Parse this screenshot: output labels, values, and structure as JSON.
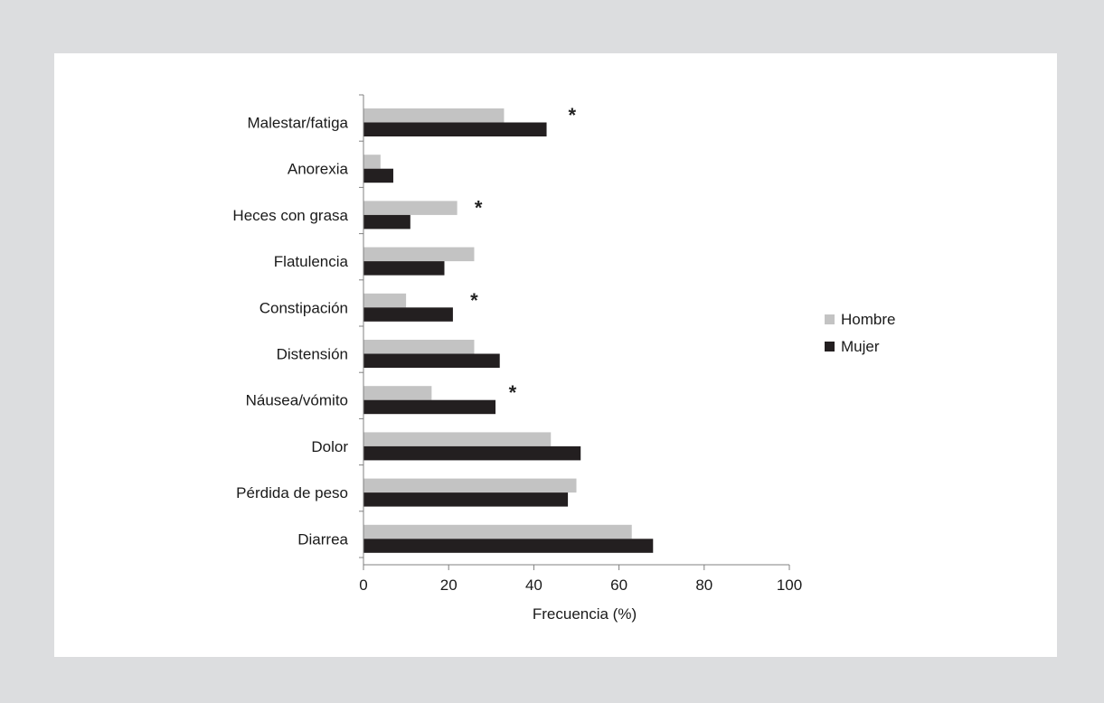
{
  "chart_data": {
    "type": "bar",
    "orientation": "horizontal",
    "categories": [
      "Malestar/fatiga",
      "Anorexia",
      "Heces con grasa",
      "Flatulencia",
      "Constipación",
      "Distensión",
      "Náusea/vómito",
      "Dolor",
      "Pérdida de peso",
      "Diarrea"
    ],
    "series": [
      {
        "name": "Hombre",
        "color": "#c3c3c3",
        "values": [
          33,
          4,
          22,
          26,
          10,
          26,
          16,
          44,
          50,
          63
        ]
      },
      {
        "name": "Mujer",
        "color": "#231f20",
        "values": [
          43,
          7,
          11,
          19,
          21,
          32,
          31,
          51,
          48,
          68
        ]
      }
    ],
    "annotations": [
      {
        "category": "Malestar/fatiga",
        "text": "*",
        "x": 49
      },
      {
        "category": "Heces con grasa",
        "text": "*",
        "x": 27
      },
      {
        "category": "Constipación",
        "text": "*",
        "x": 26
      },
      {
        "category": "Náusea/vómito",
        "text": "*",
        "x": 35
      }
    ],
    "title": "",
    "xlabel": "Frecuencia (%)",
    "ylabel": "",
    "xlim": [
      0,
      100
    ],
    "xticks": [
      0,
      20,
      40,
      60,
      80,
      100
    ],
    "grid": false,
    "legend_position": "right"
  }
}
